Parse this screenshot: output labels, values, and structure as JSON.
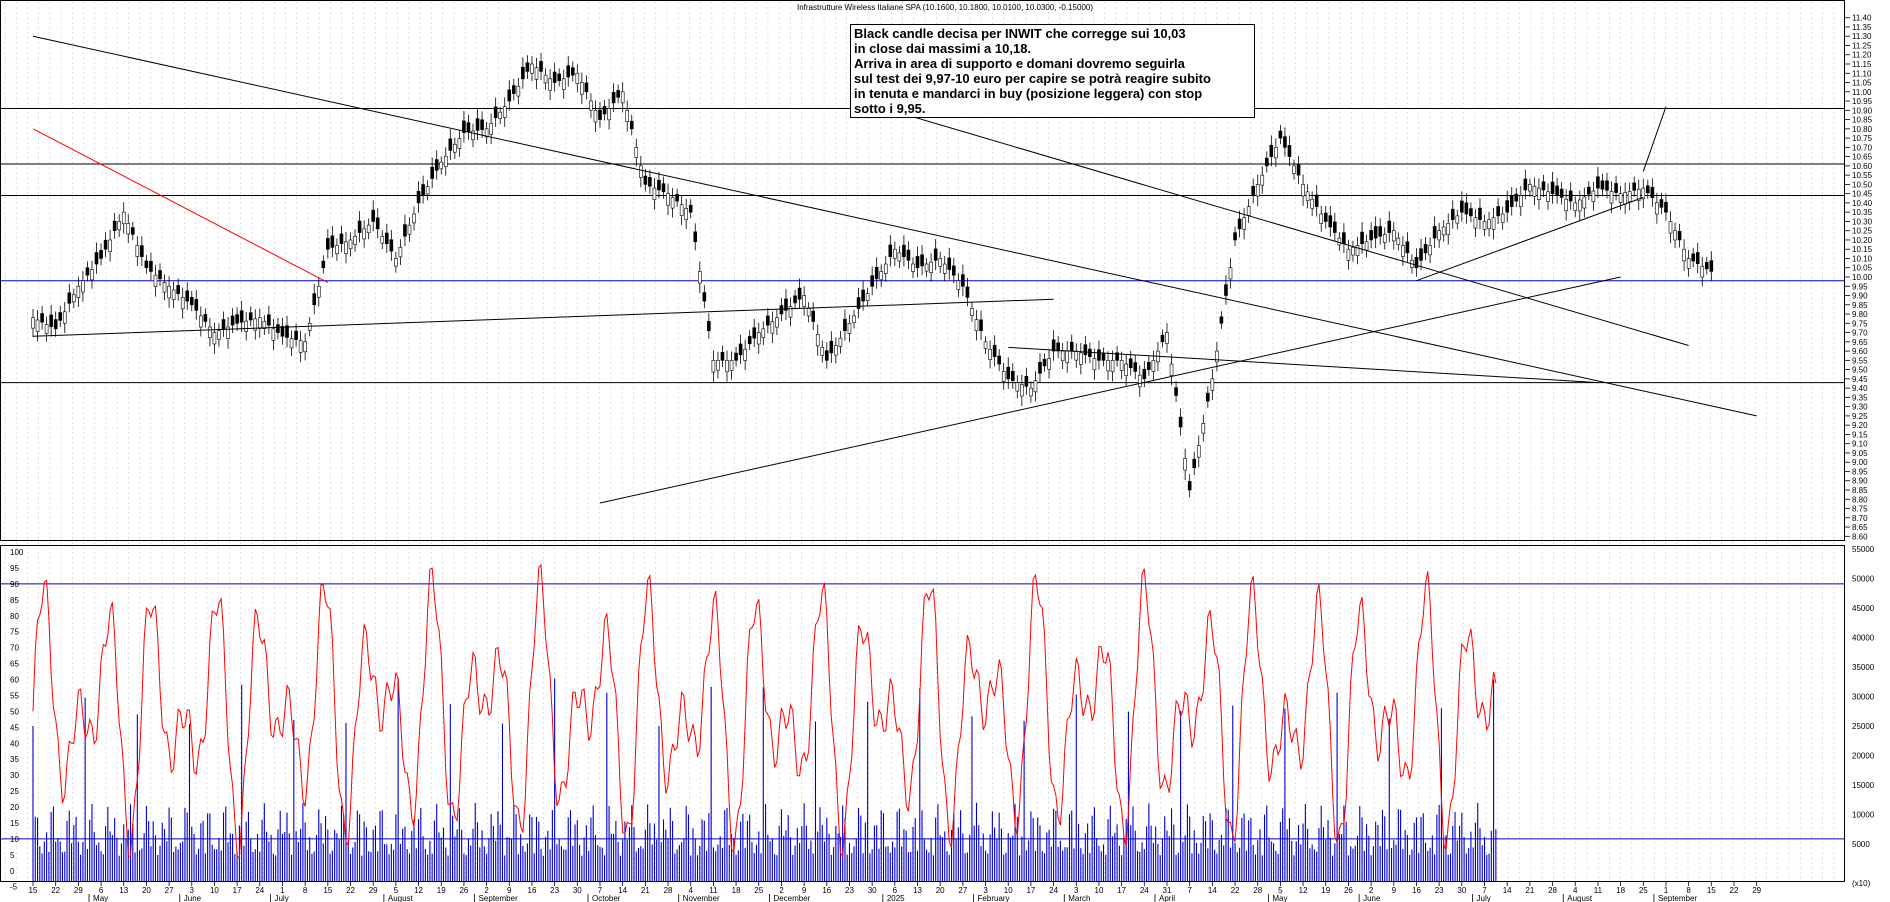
{
  "chart_data": [
    {
      "type": "candlestick",
      "title": "Infrastrutture Wireless Italiane SPA (10.1600, 10.1800, 10.0100, 10.0300, -0.15000)",
      "ylim": [
        8.58,
        11.42
      ],
      "y_ticks": [
        "11.40",
        "11.35",
        "11.30",
        "11.25",
        "11.20",
        "11.15",
        "11.10",
        "11.05",
        "11.00",
        "10.95",
        "10.90",
        "10.85",
        "10.80",
        "10.75",
        "10.70",
        "10.65",
        "10.60",
        "10.55",
        "10.50",
        "10.45",
        "10.40",
        "10.35",
        "10.30",
        "10.25",
        "10.20",
        "10.15",
        "10.10",
        "10.05",
        "10.00",
        "9.95",
        "9.90",
        "9.85",
        "9.80",
        "9.75",
        "9.70",
        "9.65",
        "9.60",
        "9.55",
        "9.50",
        "9.45",
        "9.40",
        "9.35",
        "9.30",
        "9.25",
        "9.20",
        "9.15",
        "9.10",
        "9.05",
        "9.00",
        "8.95",
        "8.90",
        "8.85",
        "8.80",
        "8.75",
        "8.70",
        "8.65",
        "8.60"
      ],
      "horizontal_levels": [
        {
          "value": 10.91,
          "color": "#000000"
        },
        {
          "value": 10.61,
          "color": "#000000"
        },
        {
          "value": 10.44,
          "color": "#000000"
        },
        {
          "value": 9.98,
          "color": "#0000cc"
        },
        {
          "value": 9.43,
          "color": "#000000"
        }
      ],
      "close_path": [
        [
          "15",
          9.78
        ],
        [
          "22",
          9.72
        ],
        [
          "29",
          9.95
        ],
        [
          "6",
          10.1
        ],
        [
          "13",
          10.35
        ],
        [
          "20",
          10.05
        ],
        [
          "27",
          9.95
        ],
        [
          "3",
          9.85
        ],
        [
          "10",
          9.7
        ],
        [
          "17",
          9.75
        ],
        [
          "24",
          9.78
        ],
        [
          "1",
          9.68
        ],
        [
          "8",
          9.65
        ],
        [
          "15",
          10.15
        ],
        [
          "22",
          10.2
        ],
        [
          "29",
          10.3
        ],
        [
          "5",
          10.1
        ],
        [
          "12",
          10.4
        ],
        [
          "19",
          10.62
        ],
        [
          "26",
          10.78
        ],
        [
          "2",
          10.8
        ],
        [
          "9",
          10.95
        ],
        [
          "16",
          11.15
        ],
        [
          "23",
          11.05
        ],
        [
          "30",
          11.1
        ],
        [
          "7",
          10.85
        ],
        [
          "14",
          11.0
        ],
        [
          "21",
          10.5
        ],
        [
          "28",
          10.45
        ],
        [
          "4",
          10.35
        ],
        [
          "11",
          9.55
        ],
        [
          "18",
          9.55
        ],
        [
          "25",
          9.7
        ],
        [
          "2",
          9.8
        ],
        [
          "9",
          9.9
        ],
        [
          "16",
          9.55
        ],
        [
          "23",
          9.75
        ],
        [
          "30",
          9.95
        ],
        [
          "6",
          10.15
        ],
        [
          "13",
          10.05
        ],
        [
          "20",
          10.1
        ],
        [
          "27",
          9.95
        ],
        [
          "3",
          9.65
        ],
        [
          "10",
          9.45
        ],
        [
          "17",
          9.4
        ],
        [
          "24",
          9.6
        ],
        [
          "3",
          9.6
        ],
        [
          "10",
          9.55
        ],
        [
          "17",
          9.55
        ],
        [
          "24",
          9.45
        ],
        [
          "31",
          9.7
        ],
        [
          "7",
          8.85
        ],
        [
          "14",
          9.45
        ],
        [
          "22",
          10.2
        ],
        [
          "28",
          10.5
        ],
        [
          "5",
          10.75
        ],
        [
          "12",
          10.5
        ],
        [
          "19",
          10.3
        ],
        [
          "26",
          10.15
        ],
        [
          "2",
          10.2
        ],
        [
          "9",
          10.25
        ],
        [
          "16",
          10.05
        ],
        [
          "23",
          10.25
        ],
        [
          "30",
          10.35
        ],
        [
          "7",
          10.3
        ],
        [
          "14",
          10.35
        ],
        [
          "21",
          10.5
        ],
        [
          "28",
          10.45
        ],
        [
          "4",
          10.4
        ],
        [
          "11",
          10.48
        ],
        [
          "18",
          10.45
        ],
        [
          "25",
          10.48
        ],
        [
          "1",
          10.35
        ],
        [
          "8",
          10.1
        ],
        [
          "15",
          10.03
        ]
      ],
      "trend_lines": [
        {
          "from": [
            "15",
            11.3
          ],
          "to": [
            "29",
            9.25
          ],
          "color": "#000000"
        },
        {
          "from": [
            "15",
            10.8
          ],
          "to": [
            "15",
            9.97
          ],
          "color": "#ff0000"
        },
        {
          "from": [
            "15",
            9.68
          ],
          "to": [
            "24",
            9.88
          ],
          "color": "#000000"
        },
        {
          "from": [
            "8",
            9.63
          ],
          "to": [
            "30",
            10.93
          ],
          "color": "#000000"
        },
        {
          "from": [
            "30",
            11.23
          ],
          "to": [
            "27",
            11.0
          ],
          "color": "#000000"
        },
        {
          "from": [
            "11",
            9.43
          ],
          "to": [
            "10",
            9.62
          ],
          "color": "#000000"
        },
        {
          "from": [
            "7",
            8.78
          ],
          "to": [
            "18",
            10.0
          ],
          "color": "#000000"
        },
        {
          "from": [
            "16",
            9.98
          ],
          "to": [
            "25",
            10.43
          ],
          "color": "#000000"
        },
        {
          "from": [
            "1",
            10.92
          ],
          "to": [
            "25",
            10.57
          ],
          "color": "#000000"
        }
      ]
    },
    {
      "type": "line+bar",
      "oscillator_ylim": [
        0,
        100
      ],
      "oscillator_ticks": [
        "100",
        "95",
        "90",
        "85",
        "80",
        "75",
        "70",
        "65",
        "60",
        "55",
        "50",
        "45",
        "40",
        "35",
        "30",
        "25",
        "20",
        "15",
        "10",
        "5",
        "0",
        "-5"
      ],
      "volume_ylim": [
        0,
        55000
      ],
      "volume_ticks": [
        "55000",
        "50000",
        "45000",
        "40000",
        "35000",
        "30000",
        "25000",
        "20000",
        "15000",
        "10000",
        "5000"
      ],
      "oscillator_levels": [
        90,
        10
      ],
      "oscillator_color": "#ff0000",
      "volume_color": "#0000cc",
      "volume_unit": "(x10)"
    }
  ],
  "x_axis": {
    "day_labels": [
      "15",
      "22",
      "29",
      "6",
      "13",
      "20",
      "27",
      "3",
      "10",
      "17",
      "24",
      "1",
      "8",
      "15",
      "22",
      "29",
      "5",
      "12",
      "19",
      "26",
      "2",
      "9",
      "16",
      "23",
      "30",
      "7",
      "14",
      "21",
      "28",
      "4",
      "11",
      "18",
      "25",
      "2",
      "9",
      "16",
      "23",
      "30",
      "6",
      "13",
      "20",
      "27",
      "3",
      "10",
      "17",
      "24",
      "3",
      "10",
      "17",
      "24",
      "31",
      "7",
      "14",
      "22",
      "28",
      "5",
      "12",
      "19",
      "26",
      "2",
      "9",
      "16",
      "23",
      "30",
      "7",
      "14",
      "21",
      "28",
      "4",
      "11",
      "18",
      "25",
      "1",
      "8",
      "15",
      "22",
      "29"
    ],
    "month_labels": [
      {
        "label": "May",
        "at": 3
      },
      {
        "label": "June",
        "at": 7
      },
      {
        "label": "July",
        "at": 11
      },
      {
        "label": "August",
        "at": 16
      },
      {
        "label": "September",
        "at": 20
      },
      {
        "label": "October",
        "at": 25
      },
      {
        "label": "November",
        "at": 29
      },
      {
        "label": "December",
        "at": 33
      },
      {
        "label": "2025",
        "at": 38
      },
      {
        "label": "February",
        "at": 42
      },
      {
        "label": "March",
        "at": 46
      },
      {
        "label": "April",
        "at": 50
      },
      {
        "label": "May",
        "at": 55
      },
      {
        "label": "June",
        "at": 59
      },
      {
        "label": "July",
        "at": 64
      },
      {
        "label": "August",
        "at": 68
      },
      {
        "label": "September",
        "at": 72
      }
    ]
  },
  "annotation": {
    "lines": [
      "Black candle decisa per INWIT che corregge sui 10,03",
      "in close dai massimi a 10,18.",
      "Arriva in area di supporto e domani dovremo seguirla",
      "sul test dei 9,97-10 euro per capire se potrà reagire subito",
      "in tenuta e mandarci in buy (posizione leggera) con stop",
      "sotto i 9,95."
    ]
  }
}
